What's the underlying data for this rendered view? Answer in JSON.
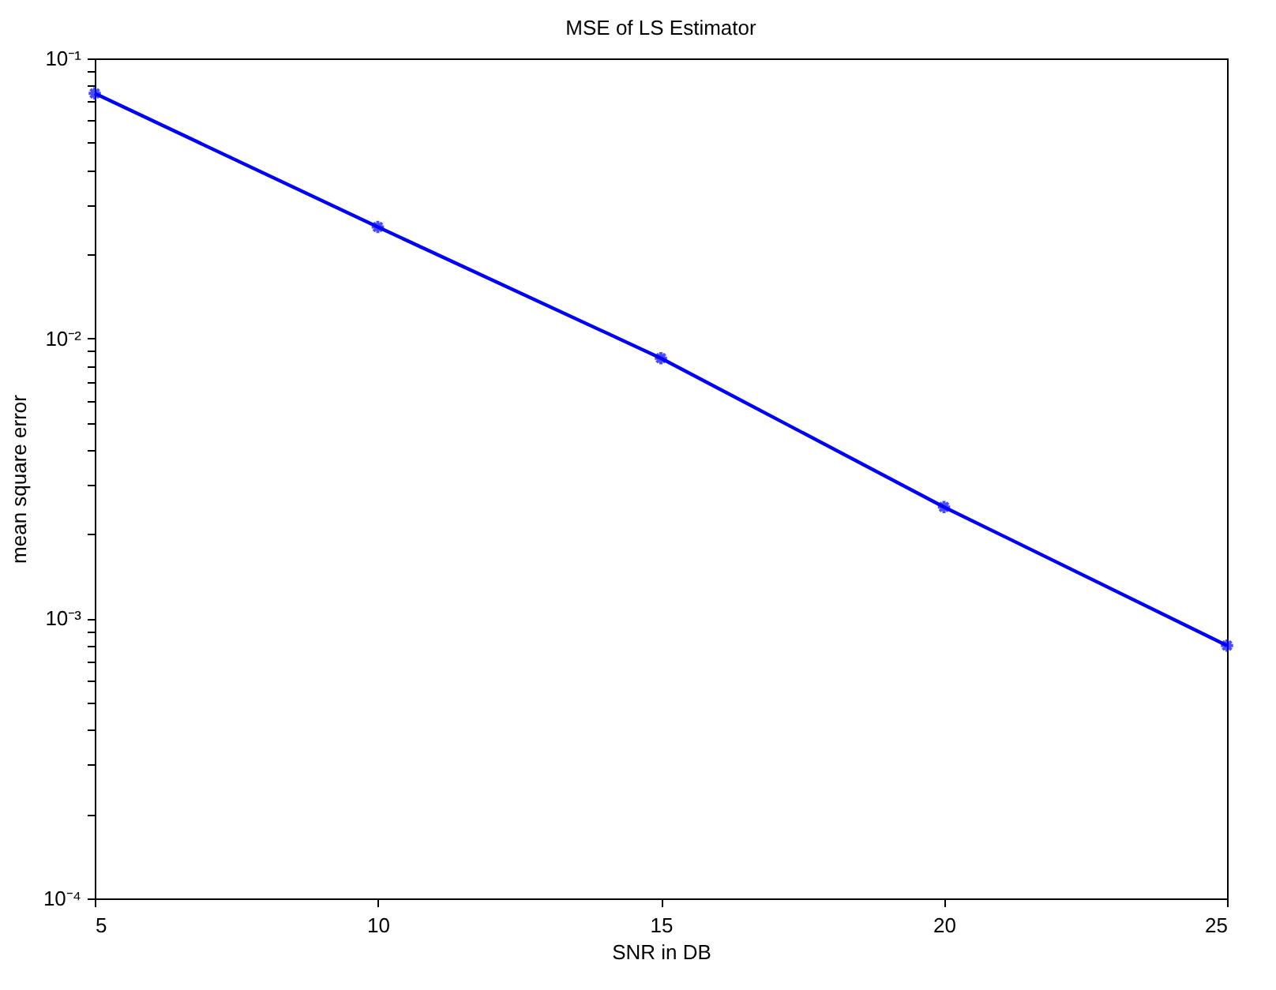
{
  "chart_data": {
    "type": "line",
    "title": "MSE of LS Estimator",
    "xlabel": "SNR in DB",
    "ylabel": "mean square error",
    "x": [
      5,
      10,
      15,
      20,
      25
    ],
    "series": [
      {
        "color": "#0000ff",
        "values": [
          0.075,
          0.025,
          0.0085,
          0.0025,
          0.0008
        ]
      }
    ],
    "log": "y",
    "marker": "cross",
    "line_style": "solid",
    "grid": false,
    "legend": false,
    "xlim": [
      5,
      25
    ],
    "xticks": [
      5,
      10,
      15,
      20,
      25
    ],
    "ylim": [
      0.0001,
      0.1
    ],
    "yticks": [
      {
        "value": 0.0001,
        "label": "10⁻⁴"
      },
      {
        "value": 0.0002,
        "label": null
      },
      {
        "value": 0.0003,
        "label": null
      },
      {
        "value": 0.0004,
        "label": null
      },
      {
        "value": 0.0005,
        "label": null
      },
      {
        "value": 0.0006,
        "label": null
      },
      {
        "value": 0.0007,
        "label": null
      },
      {
        "value": 0.0008,
        "label": null
      },
      {
        "value": 0.0009,
        "label": null
      },
      {
        "value": 0.001,
        "label": "10⁻³"
      },
      {
        "value": 0.002,
        "label": null
      },
      {
        "value": 0.003,
        "label": null
      },
      {
        "value": 0.004,
        "label": null
      },
      {
        "value": 0.005,
        "label": null
      },
      {
        "value": 0.006,
        "label": null
      },
      {
        "value": 0.007,
        "label": null
      },
      {
        "value": 0.008,
        "label": null
      },
      {
        "value": 0.009,
        "label": null
      },
      {
        "value": 0.01,
        "label": "10⁻²"
      },
      {
        "value": 0.02,
        "label": null
      },
      {
        "value": 0.03,
        "label": null
      },
      {
        "value": 0.04,
        "label": null
      },
      {
        "value": 0.05,
        "label": null
      },
      {
        "value": 0.06,
        "label": null
      },
      {
        "value": 0.07,
        "label": null
      },
      {
        "value": 0.08,
        "label": null
      },
      {
        "value": 0.09,
        "label": null
      },
      {
        "value": 0.1,
        "label": "10⁻¹"
      }
    ]
  }
}
